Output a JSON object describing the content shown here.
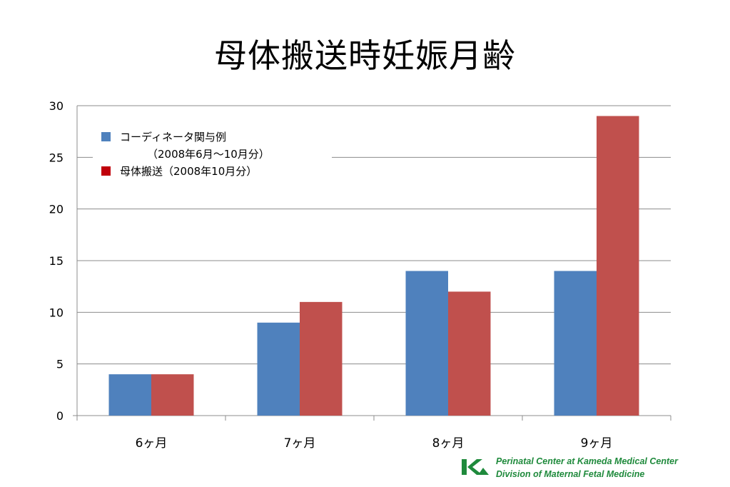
{
  "title": "母体搬送時妊娠月齢",
  "chart_data": {
    "type": "bar",
    "categories": [
      "6ヶ月",
      "7ヶ月",
      "8ヶ月",
      "9ヶ月"
    ],
    "series": [
      {
        "name": "コーディネータ関与例（2008年6月～10月分）",
        "color": "#4f81bd",
        "values": [
          4,
          9,
          14,
          14
        ]
      },
      {
        "name": "母体搬送（2008年10月分）",
        "color": "#c0504d",
        "values": [
          4,
          11,
          12,
          29
        ]
      }
    ],
    "yticks": [
      "0",
      "5",
      "10",
      "15",
      "20",
      "25",
      "30"
    ],
    "ylim": [
      0,
      30
    ],
    "grid": true,
    "legend_position": "top-left"
  },
  "legend": {
    "series1_line1": "コーディネータ関与例",
    "series1_line2": "（2008年6月～10月分）",
    "series2_label": "母体搬送（2008年10月分）",
    "series1_color": "#4f81bd",
    "series2_color": "#c0000b"
  },
  "footer": {
    "line1": "Perinatal Center at Kameda Medical Center",
    "line2": "Division of Maternal Fetal Medicine",
    "logo_icon": "kameda-logo-icon",
    "color": "#1f8a3c"
  }
}
